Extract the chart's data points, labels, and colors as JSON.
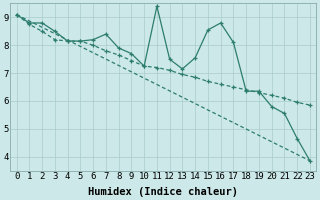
{
  "xlabel": "Humidex (Indice chaleur)",
  "bg_color": "#cce8e8",
  "grid_color": "#aacccc",
  "line_color": "#2d7d6e",
  "xlim": [
    -0.5,
    23.5
  ],
  "ylim": [
    3.5,
    9.5
  ],
  "xticks": [
    0,
    1,
    2,
    3,
    4,
    5,
    6,
    7,
    8,
    9,
    10,
    11,
    12,
    13,
    14,
    15,
    16,
    17,
    18,
    19,
    20,
    21,
    22,
    23
  ],
  "yticks": [
    4,
    5,
    6,
    7,
    8,
    9
  ],
  "series1_x": [
    0,
    1,
    2,
    3,
    4,
    5,
    6,
    7,
    8,
    9,
    10,
    11,
    12,
    13,
    14,
    15,
    16,
    17,
    18,
    19,
    20,
    21,
    22,
    23
  ],
  "series1_y": [
    9.1,
    8.8,
    8.8,
    8.5,
    8.15,
    8.15,
    8.2,
    8.4,
    7.9,
    7.7,
    7.25,
    9.4,
    7.5,
    7.15,
    7.55,
    8.55,
    8.8,
    8.1,
    6.35,
    6.35,
    5.8,
    5.55,
    4.65,
    3.85
  ],
  "series2_x": [
    0,
    1,
    2,
    3,
    4,
    5,
    6,
    7,
    8,
    9,
    10,
    11,
    12,
    13,
    14,
    15,
    16,
    17,
    18,
    19,
    20,
    21,
    22,
    23
  ],
  "series2_y": [
    9.1,
    8.75,
    8.5,
    8.2,
    8.15,
    8.15,
    8.0,
    7.8,
    7.65,
    7.45,
    7.25,
    7.2,
    7.1,
    6.95,
    6.85,
    6.7,
    6.6,
    6.5,
    6.4,
    6.3,
    6.2,
    6.1,
    5.95,
    5.85
  ],
  "series3_x": [
    0,
    23
  ],
  "series3_y": [
    9.1,
    3.85
  ],
  "marker_size": 3.5,
  "linewidth": 0.9,
  "xlabel_fontsize": 7.5,
  "tick_fontsize": 6.5
}
